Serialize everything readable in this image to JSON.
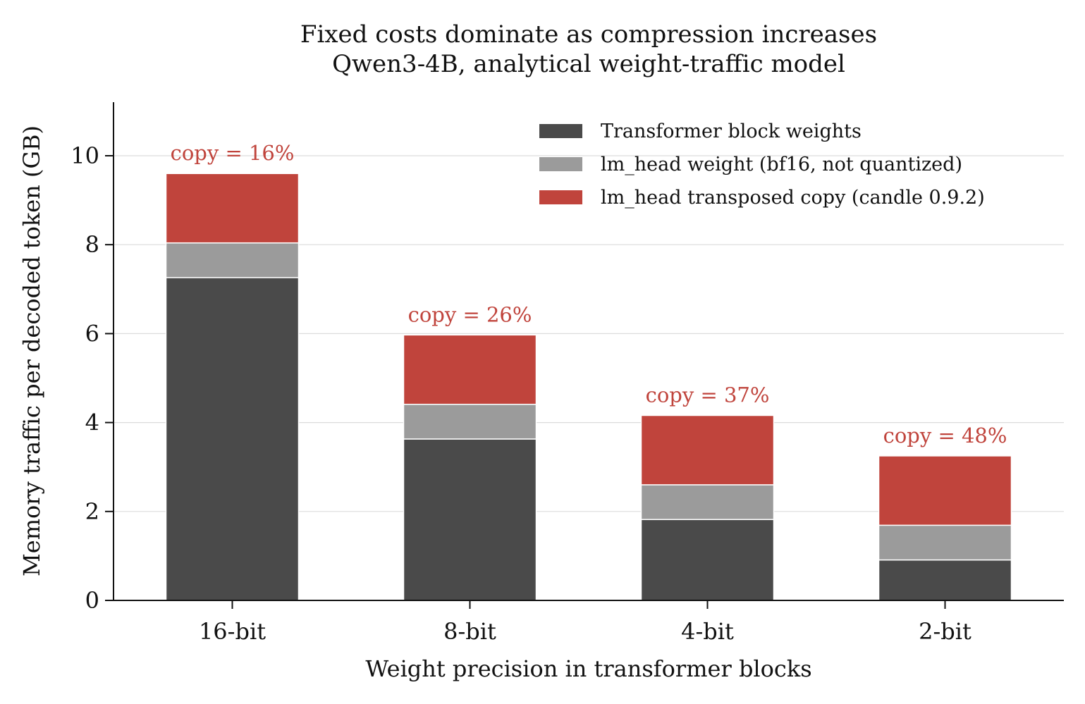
{
  "chart_data": {
    "type": "bar",
    "stacked": true,
    "title": "Fixed costs dominate as compression increases",
    "subtitle": "Qwen3-4B, analytical weight-traffic model",
    "xlabel": "Weight precision in transformer blocks",
    "ylabel": "Memory traffic per decoded token (GB)",
    "categories": [
      "16-bit",
      "8-bit",
      "4-bit",
      "2-bit"
    ],
    "ylim": [
      0,
      11.2
    ],
    "yticks": [
      0,
      2,
      4,
      6,
      8,
      10
    ],
    "grid": "y",
    "legend_position": "top-right",
    "series": [
      {
        "name": "Transformer block weights",
        "color": "#4a4a4a",
        "values": [
          7.26,
          3.63,
          1.82,
          0.91
        ]
      },
      {
        "name": "lm_head weight (bf16, not quantized)",
        "color": "#9b9b9b",
        "values": [
          0.78,
          0.78,
          0.78,
          0.78
        ]
      },
      {
        "name": "lm_head transposed copy (candle 0.9.2)",
        "color": "#c0443c",
        "values": [
          1.56,
          1.56,
          1.56,
          1.56
        ]
      }
    ],
    "annotations": [
      "copy = 16%",
      "copy = 26%",
      "copy = 37%",
      "copy = 48%"
    ],
    "annotation_color": "#c0443c"
  }
}
